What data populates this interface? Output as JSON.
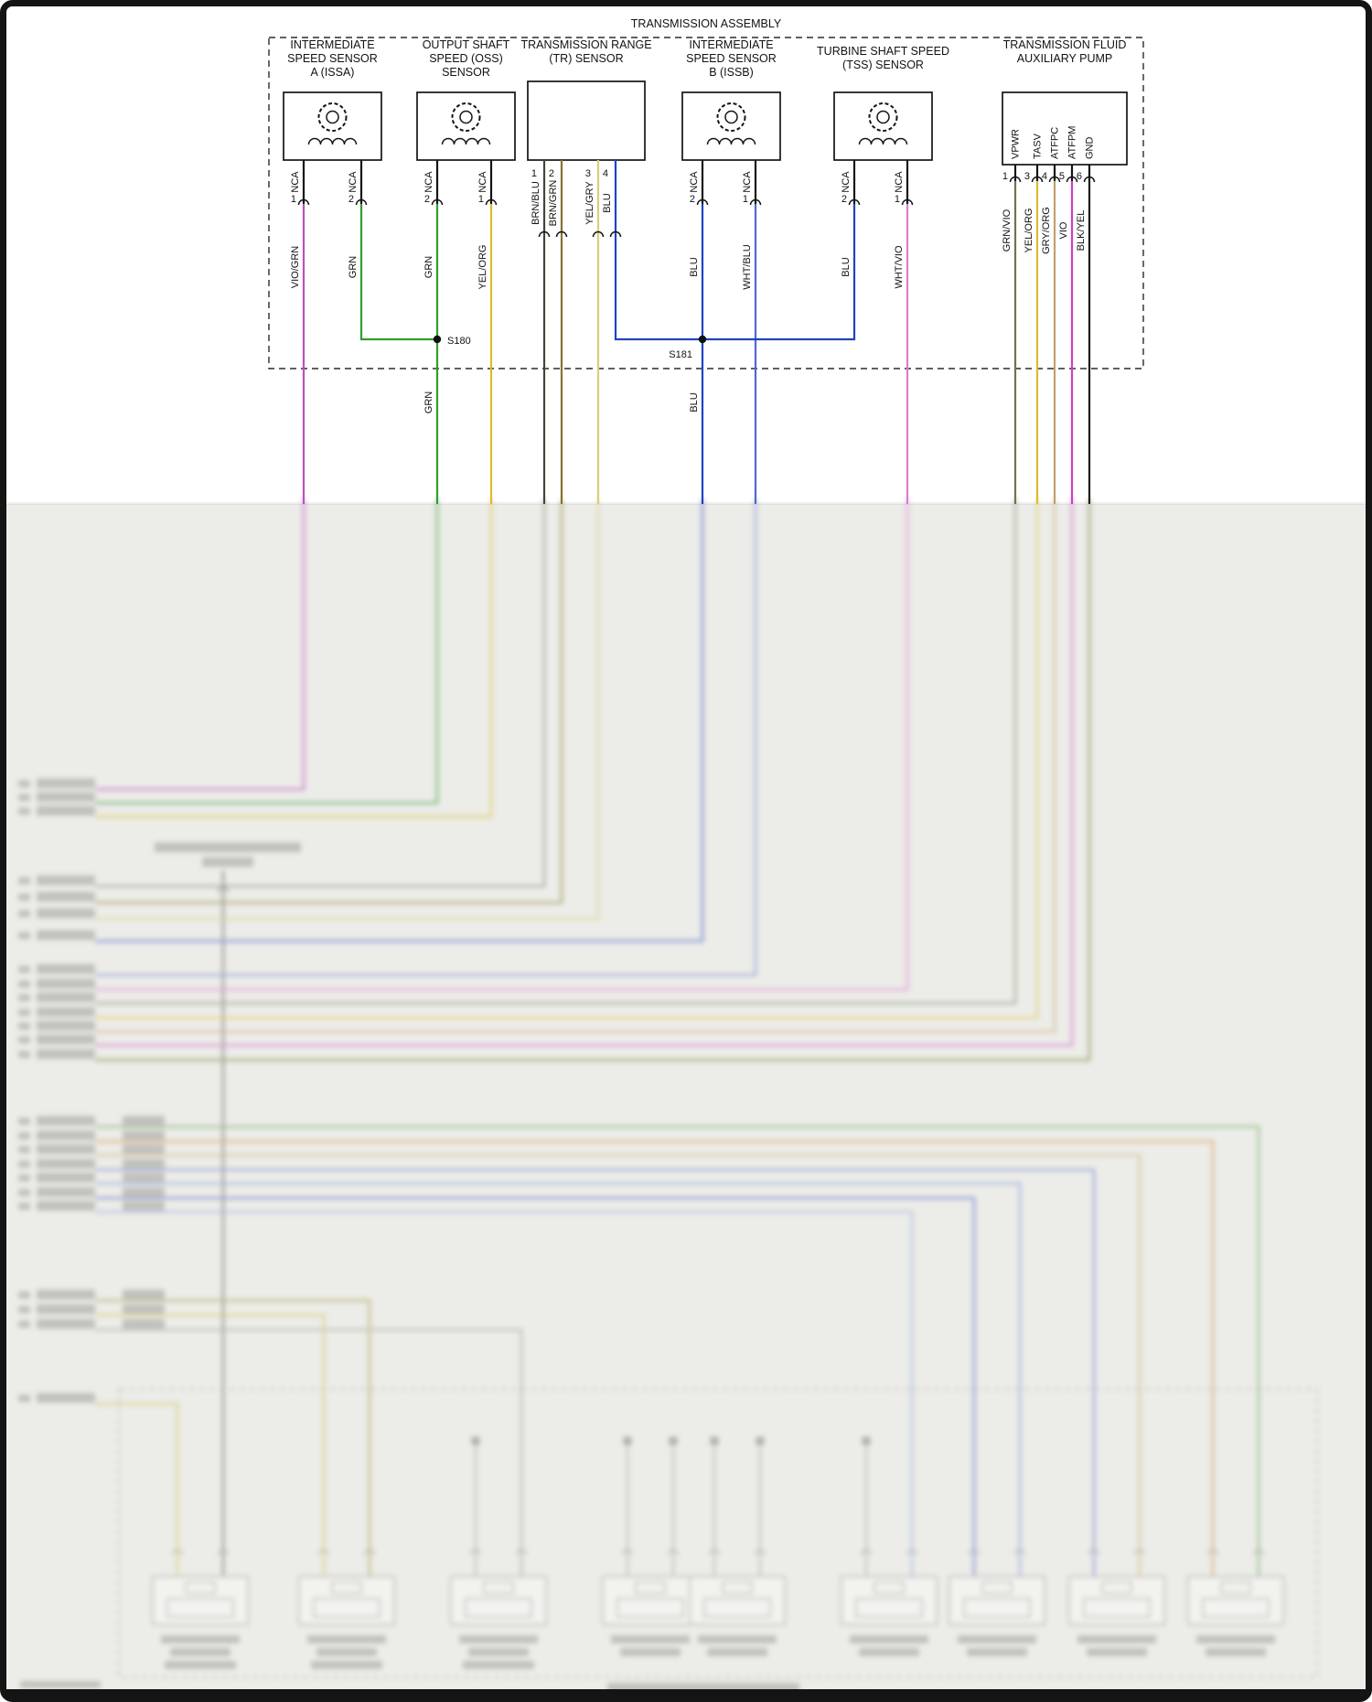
{
  "title": "TRANSMISSION ASSEMBLY",
  "splices": {
    "s180": {
      "label": "S180",
      "net_label": "GRN"
    },
    "s181": {
      "label": "S181",
      "net_label": "BLU"
    }
  },
  "wire_colors": {
    "VIO/GRN": "#bf4fbf",
    "GRN": "#2f9e2f",
    "YEL/ORG": "#ddba2e",
    "BRN/BLU": "#4a4236",
    "BRN/GRN": "#86722f",
    "YEL/GRY": "#d9ce7a",
    "BLU": "#1f44bf",
    "WHT/BLU": "#5068cc",
    "WHT/VIO": "#df7ad2",
    "GRN/VIO": "#6d7550",
    "GRY/ORG": "#c2a070",
    "VIO": "#cc3ecc",
    "BLK/YEL": "#1c1c1c"
  },
  "components": [
    {
      "id": "issa",
      "type": "speed-sensor",
      "label_lines": [
        "INTERMEDIATE",
        "SPEED SENSOR",
        "A (ISSA)"
      ],
      "pins": [
        {
          "number": "1",
          "name": "NCA",
          "wire": "VIO/GRN"
        },
        {
          "number": "2",
          "name": "NCA",
          "wire": "GRN"
        }
      ]
    },
    {
      "id": "oss",
      "type": "speed-sensor",
      "label_lines": [
        "OUTPUT SHAFT",
        "SPEED (OSS)",
        "SENSOR"
      ],
      "pins": [
        {
          "number": "2",
          "name": "NCA",
          "wire": "GRN"
        },
        {
          "number": "1",
          "name": "NCA",
          "wire": "YEL/ORG"
        }
      ]
    },
    {
      "id": "tr",
      "type": "plain-box",
      "label_lines": [
        "TRANSMISSION RANGE",
        "(TR) SENSOR"
      ],
      "pins": [
        {
          "number": "1",
          "wire": "BRN/BLU"
        },
        {
          "number": "2",
          "wire": "BRN/GRN"
        },
        {
          "number": "3",
          "wire": "YEL/GRY"
        },
        {
          "number": "4",
          "wire": "BLU"
        }
      ]
    },
    {
      "id": "issb",
      "type": "speed-sensor",
      "label_lines": [
        "INTERMEDIATE",
        "SPEED SENSOR",
        "B (ISSB)"
      ],
      "pins": [
        {
          "number": "2",
          "name": "NCA",
          "wire": "BLU"
        },
        {
          "number": "1",
          "name": "NCA",
          "wire": "WHT/BLU"
        }
      ]
    },
    {
      "id": "tss",
      "type": "speed-sensor",
      "label_lines": [
        "TURBINE SHAFT SPEED",
        "(TSS) SENSOR"
      ],
      "pins": [
        {
          "number": "2",
          "name": "NCA",
          "wire": "BLU"
        },
        {
          "number": "1",
          "name": "NCA",
          "wire": "WHT/VIO"
        }
      ]
    },
    {
      "id": "pump",
      "type": "pump",
      "label_lines": [
        "TRANSMISSION FLUID",
        "AUXILIARY PUMP"
      ],
      "pins": [
        {
          "number": "1",
          "name": "VPWR",
          "wire": "GRN/VIO"
        },
        {
          "number": "3",
          "name": "TASV",
          "wire": "YEL/ORG"
        },
        {
          "number": "4",
          "name": "ATFPC",
          "wire": "GRY/ORG"
        },
        {
          "number": "5",
          "name": "ATFPM",
          "wire": "VIO"
        },
        {
          "number": "6",
          "name": "GND",
          "wire": "BLK/YEL"
        }
      ]
    }
  ]
}
